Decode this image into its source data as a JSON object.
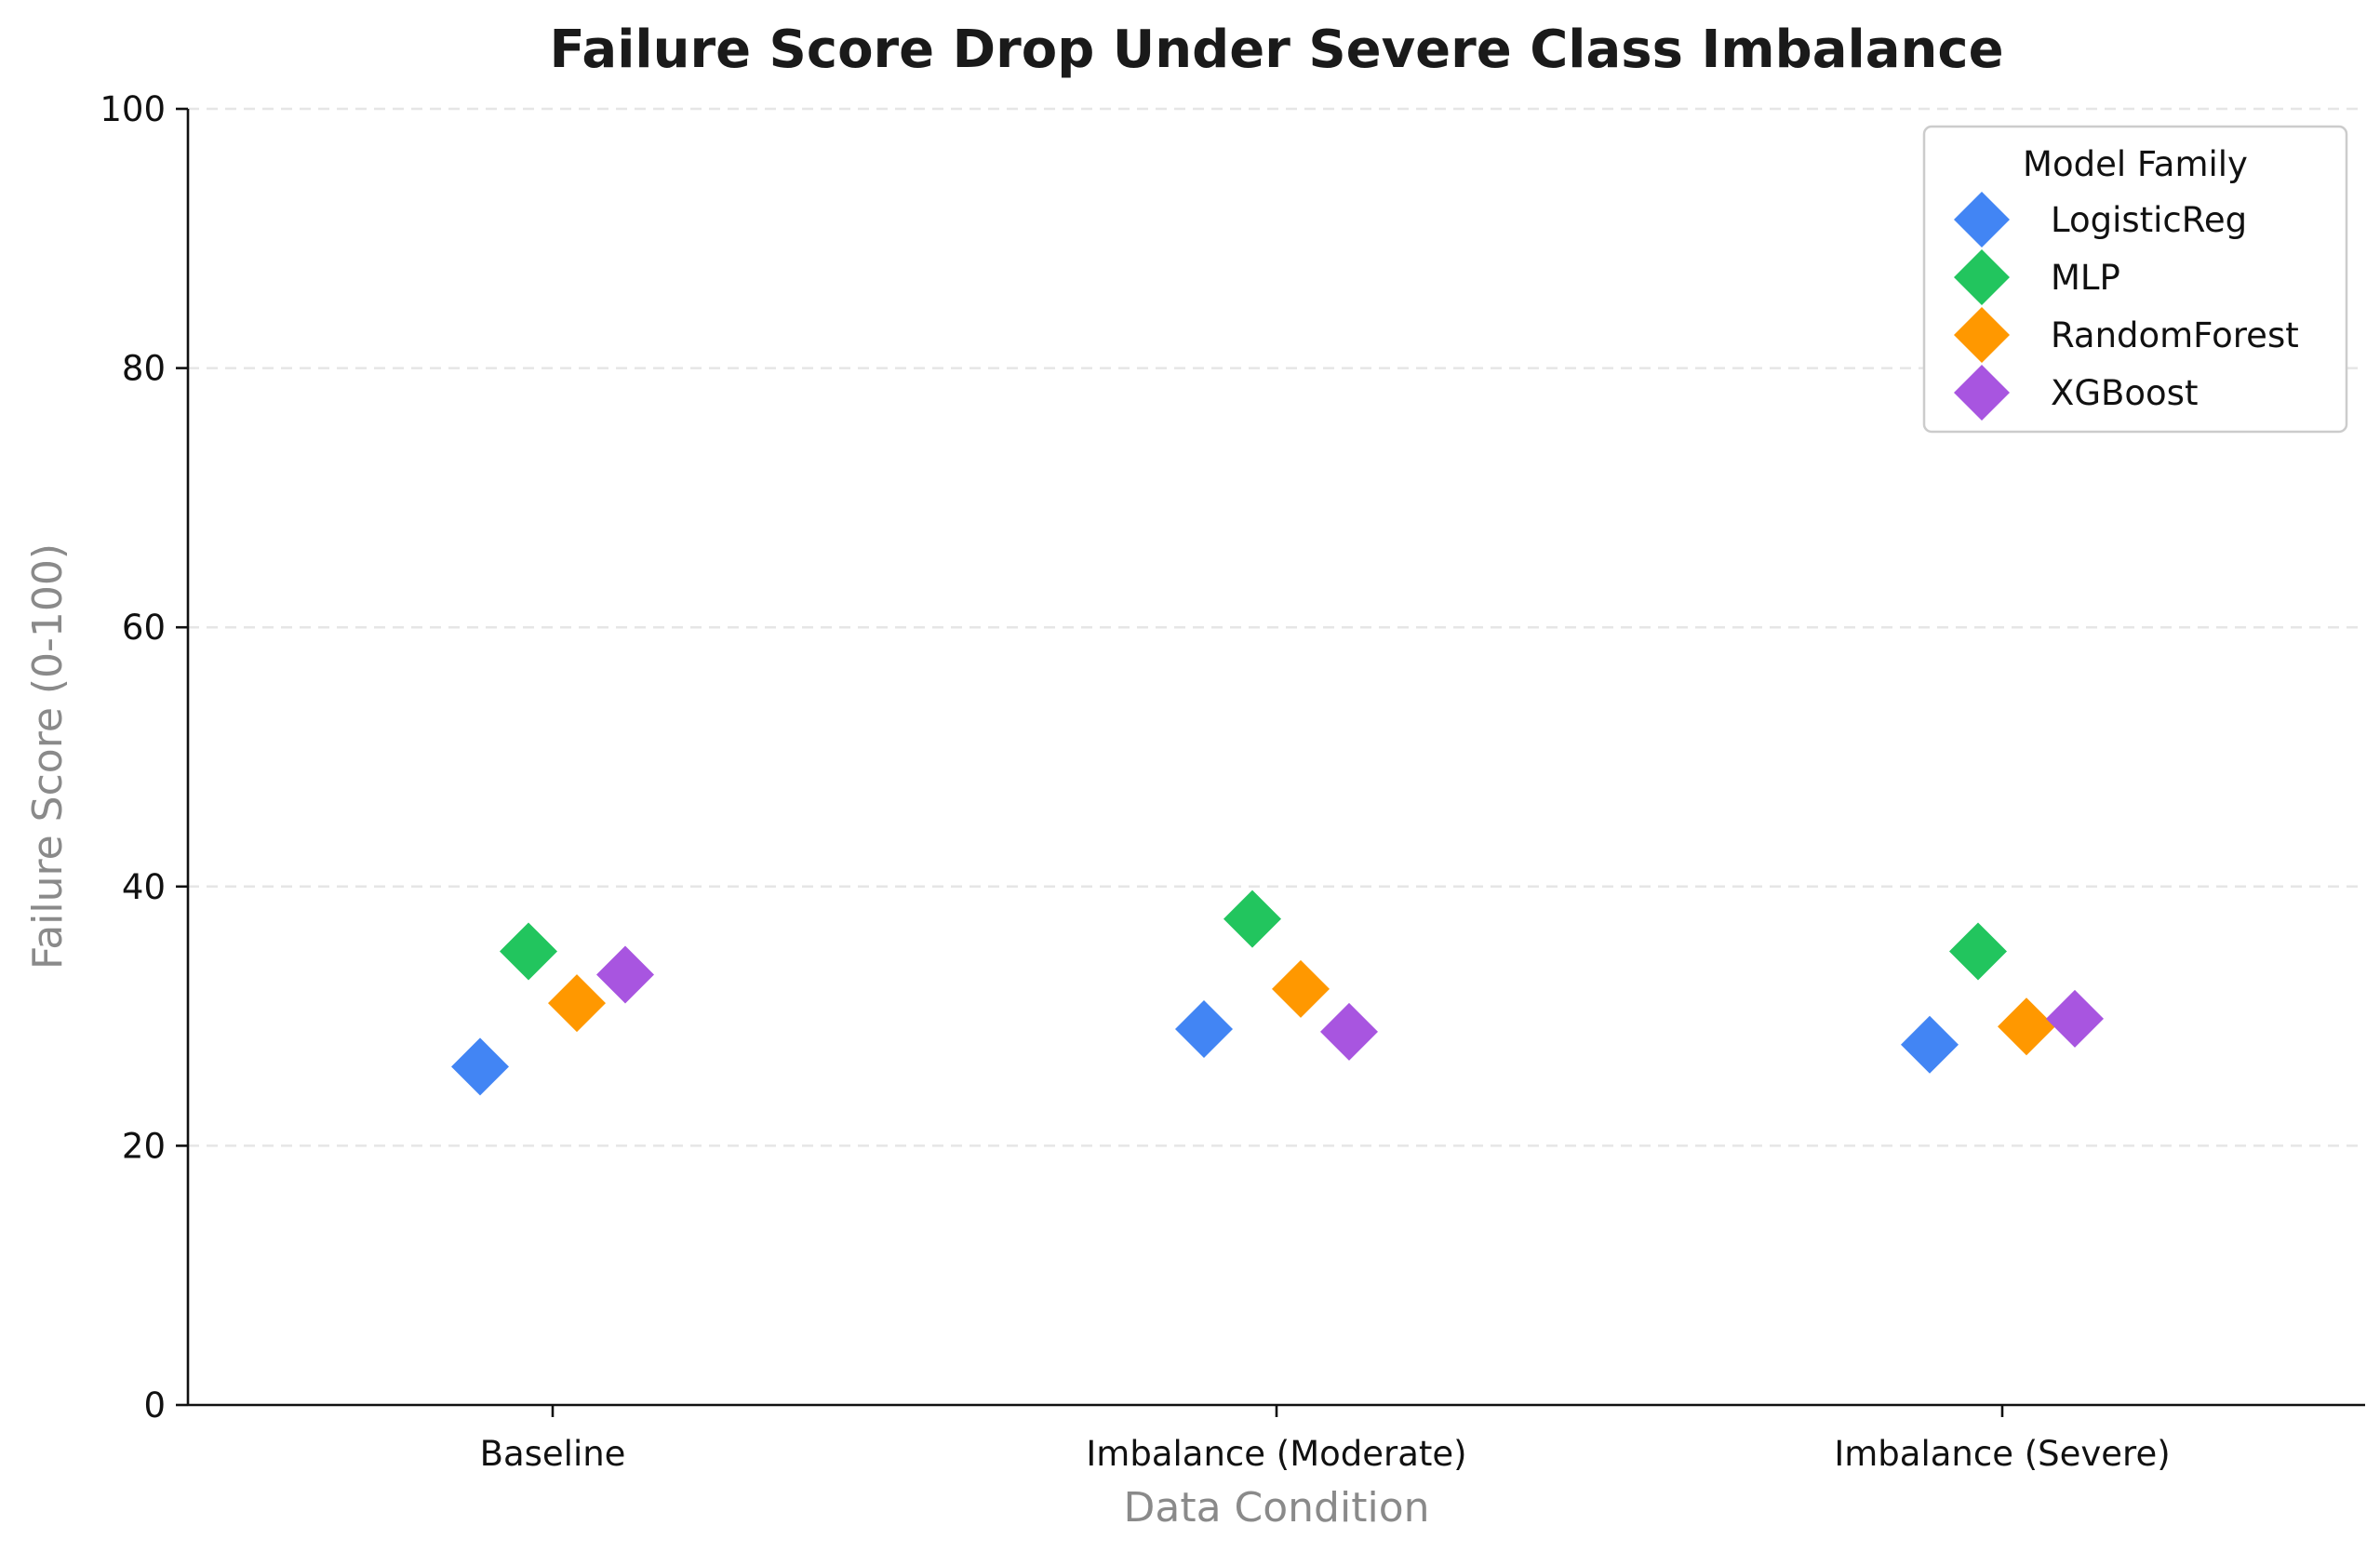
{
  "chart_data": {
    "type": "scatter",
    "title": "Failure Score Drop Under Severe Class Imbalance",
    "xlabel": "Data Condition",
    "ylabel": "Failure Score (0-100)",
    "categories": [
      "Baseline",
      "Imbalance (Moderate)",
      "Imbalance (Severe)"
    ],
    "ylim": [
      0,
      100
    ],
    "yticks": [
      0,
      20,
      40,
      60,
      80,
      100
    ],
    "grid": "y-dashed",
    "marker": "diamond",
    "legend": {
      "title": "Model Family",
      "placement": "top-right"
    },
    "series": [
      {
        "name": "LogisticReg",
        "color": "#4285f4",
        "values": [
          26.1,
          29.0,
          27.8
        ]
      },
      {
        "name": "MLP",
        "color": "#22c55e",
        "values": [
          35.0,
          37.5,
          35.0
        ]
      },
      {
        "name": "RandomForest",
        "color": "#ff9800",
        "values": [
          31.0,
          32.1,
          29.2
        ]
      },
      {
        "name": "XGBoost",
        "color": "#a855e0",
        "values": [
          33.2,
          28.8,
          29.8
        ]
      }
    ]
  }
}
